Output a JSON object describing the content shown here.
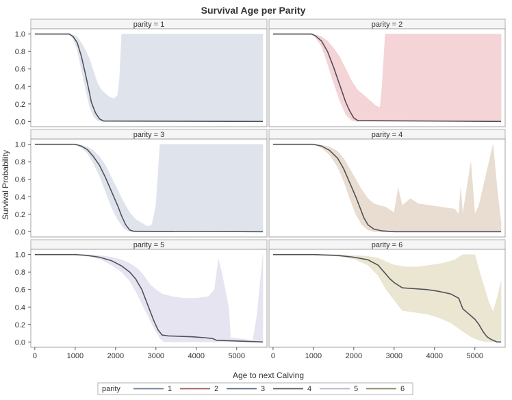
{
  "chart_data": {
    "type": "line",
    "title": "Survival Age per Parity",
    "xlabel": "Age to next Calving",
    "ylabel": "Survival Probability",
    "xlim": [
      -100,
      5750
    ],
    "ylim": [
      -0.06,
      1.06
    ],
    "xticks": [
      "0",
      "1000",
      "2000",
      "3000",
      "4000",
      "5000"
    ],
    "yticks": [
      "0.0",
      "0.2",
      "0.4",
      "0.6",
      "0.8",
      "1.0"
    ],
    "grid": false,
    "legend": {
      "title": "parity",
      "position": "bottom",
      "entries": [
        "1",
        "2",
        "3",
        "4",
        "5",
        "6"
      ],
      "colors": [
        "#6a7a9a",
        "#a05a5a",
        "#5a6a80",
        "#5a5a5a",
        "#b8b0cc",
        "#8a8460"
      ]
    },
    "panels": [
      {
        "label": "parity = 1",
        "band_color": "#dfe4ec",
        "line_color": "#505058",
        "curve": [
          [
            0,
            1
          ],
          [
            850,
            1
          ],
          [
            950,
            0.97
          ],
          [
            1050,
            0.9
          ],
          [
            1150,
            0.75
          ],
          [
            1250,
            0.55
          ],
          [
            1330,
            0.38
          ],
          [
            1400,
            0.22
          ],
          [
            1500,
            0.1
          ],
          [
            1600,
            0.03
          ],
          [
            1700,
            0.005
          ],
          [
            5650,
            0
          ]
        ],
        "upper": [
          [
            0,
            1
          ],
          [
            850,
            1
          ],
          [
            950,
            0.99
          ],
          [
            1050,
            0.97
          ],
          [
            1150,
            0.9
          ],
          [
            1250,
            0.82
          ],
          [
            1350,
            0.72
          ],
          [
            1450,
            0.58
          ],
          [
            1550,
            0.44
          ],
          [
            1650,
            0.36
          ],
          [
            1750,
            0.32
          ],
          [
            1850,
            0.28
          ],
          [
            1950,
            0.26
          ],
          [
            2050,
            0.3
          ],
          [
            2100,
            0.5
          ],
          [
            2150,
            1
          ],
          [
            5650,
            1
          ]
        ],
        "lower": [
          [
            0,
            1
          ],
          [
            850,
            1
          ],
          [
            950,
            0.95
          ],
          [
            1050,
            0.82
          ],
          [
            1150,
            0.6
          ],
          [
            1250,
            0.38
          ],
          [
            1350,
            0.18
          ],
          [
            1450,
            0.06
          ],
          [
            1550,
            0.01
          ],
          [
            1650,
            0
          ],
          [
            5650,
            0
          ]
        ]
      },
      {
        "label": "parity = 2",
        "band_color": "#f4d4d6",
        "line_color": "#505058",
        "curve": [
          [
            0,
            1
          ],
          [
            950,
            1
          ],
          [
            1050,
            0.98
          ],
          [
            1200,
            0.92
          ],
          [
            1350,
            0.8
          ],
          [
            1500,
            0.62
          ],
          [
            1650,
            0.42
          ],
          [
            1800,
            0.22
          ],
          [
            1900,
            0.12
          ],
          [
            2000,
            0.04
          ],
          [
            2100,
            0.01
          ],
          [
            5650,
            0
          ]
        ],
        "upper": [
          [
            0,
            1
          ],
          [
            950,
            1
          ],
          [
            1050,
            0.99
          ],
          [
            1200,
            0.97
          ],
          [
            1350,
            0.92
          ],
          [
            1500,
            0.84
          ],
          [
            1650,
            0.74
          ],
          [
            1800,
            0.6
          ],
          [
            1950,
            0.46
          ],
          [
            2100,
            0.36
          ],
          [
            2250,
            0.3
          ],
          [
            2400,
            0.24
          ],
          [
            2550,
            0.18
          ],
          [
            2650,
            0.16
          ],
          [
            2700,
            0.4
          ],
          [
            2780,
            1
          ],
          [
            5650,
            1
          ]
        ],
        "lower": [
          [
            0,
            1
          ],
          [
            950,
            1
          ],
          [
            1050,
            0.96
          ],
          [
            1200,
            0.86
          ],
          [
            1350,
            0.66
          ],
          [
            1500,
            0.44
          ],
          [
            1650,
            0.24
          ],
          [
            1800,
            0.08
          ],
          [
            1950,
            0.01
          ],
          [
            2050,
            0
          ],
          [
            5650,
            0
          ]
        ]
      },
      {
        "label": "parity = 3",
        "band_color": "#dfe4ec",
        "line_color": "#505058",
        "curve": [
          [
            0,
            1
          ],
          [
            1000,
            1
          ],
          [
            1150,
            0.98
          ],
          [
            1300,
            0.94
          ],
          [
            1450,
            0.86
          ],
          [
            1600,
            0.76
          ],
          [
            1750,
            0.62
          ],
          [
            1900,
            0.46
          ],
          [
            2050,
            0.3
          ],
          [
            2150,
            0.18
          ],
          [
            2250,
            0.08
          ],
          [
            2350,
            0.02
          ],
          [
            2450,
            0.005
          ],
          [
            5650,
            0
          ]
        ],
        "upper": [
          [
            0,
            1
          ],
          [
            1000,
            1
          ],
          [
            1150,
            0.99
          ],
          [
            1300,
            0.97
          ],
          [
            1450,
            0.93
          ],
          [
            1600,
            0.86
          ],
          [
            1750,
            0.76
          ],
          [
            1900,
            0.62
          ],
          [
            2050,
            0.48
          ],
          [
            2200,
            0.34
          ],
          [
            2350,
            0.22
          ],
          [
            2500,
            0.14
          ],
          [
            2650,
            0.1
          ],
          [
            2800,
            0.06
          ],
          [
            2900,
            0.08
          ],
          [
            3000,
            0.3
          ],
          [
            3100,
            1
          ],
          [
            5650,
            1
          ]
        ],
        "lower": [
          [
            0,
            1
          ],
          [
            1000,
            1
          ],
          [
            1150,
            0.96
          ],
          [
            1300,
            0.9
          ],
          [
            1450,
            0.78
          ],
          [
            1600,
            0.64
          ],
          [
            1750,
            0.46
          ],
          [
            1900,
            0.28
          ],
          [
            2050,
            0.14
          ],
          [
            2200,
            0.04
          ],
          [
            2350,
            0
          ],
          [
            5650,
            0
          ]
        ]
      },
      {
        "label": "parity = 4",
        "band_color": "#e8ddd0",
        "line_color": "#505058",
        "curve": [
          [
            0,
            1
          ],
          [
            1000,
            1
          ],
          [
            1200,
            0.98
          ],
          [
            1400,
            0.93
          ],
          [
            1600,
            0.84
          ],
          [
            1750,
            0.72
          ],
          [
            1900,
            0.56
          ],
          [
            2050,
            0.4
          ],
          [
            2150,
            0.28
          ],
          [
            2250,
            0.16
          ],
          [
            2350,
            0.08
          ],
          [
            2500,
            0.03
          ],
          [
            2700,
            0.01
          ],
          [
            3000,
            0
          ],
          [
            5650,
            0
          ]
        ],
        "upper": [
          [
            0,
            1
          ],
          [
            1000,
            1
          ],
          [
            1200,
            0.99
          ],
          [
            1400,
            0.97
          ],
          [
            1600,
            0.92
          ],
          [
            1750,
            0.84
          ],
          [
            1900,
            0.72
          ],
          [
            2050,
            0.6
          ],
          [
            2200,
            0.48
          ],
          [
            2350,
            0.38
          ],
          [
            2500,
            0.32
          ],
          [
            2650,
            0.3
          ],
          [
            2800,
            0.28
          ],
          [
            3000,
            0.22
          ],
          [
            3100,
            0.5
          ],
          [
            3200,
            0.3
          ],
          [
            3400,
            0.38
          ],
          [
            3600,
            0.32
          ],
          [
            3900,
            0.3
          ],
          [
            4200,
            0.28
          ],
          [
            4500,
            0.26
          ],
          [
            4600,
            0.2
          ],
          [
            4650,
            0.5
          ],
          [
            4700,
            0.2
          ],
          [
            4900,
            0.8
          ],
          [
            5000,
            0.2
          ],
          [
            5100,
            0.3
          ],
          [
            5300,
            0.7
          ],
          [
            5450,
            1
          ],
          [
            5550,
            0.5
          ],
          [
            5650,
            0.1
          ]
        ],
        "lower": [
          [
            0,
            1
          ],
          [
            1000,
            1
          ],
          [
            1200,
            0.96
          ],
          [
            1400,
            0.88
          ],
          [
            1600,
            0.74
          ],
          [
            1750,
            0.58
          ],
          [
            1900,
            0.38
          ],
          [
            2050,
            0.2
          ],
          [
            2200,
            0.08
          ],
          [
            2350,
            0.02
          ],
          [
            2500,
            0
          ],
          [
            5650,
            0
          ]
        ]
      },
      {
        "label": "parity = 5",
        "band_color": "#e6e4f0",
        "line_color": "#505058",
        "curve": [
          [
            0,
            1
          ],
          [
            1000,
            1
          ],
          [
            1300,
            0.99
          ],
          [
            1600,
            0.97
          ],
          [
            1900,
            0.93
          ],
          [
            2150,
            0.87
          ],
          [
            2350,
            0.8
          ],
          [
            2500,
            0.72
          ],
          [
            2650,
            0.6
          ],
          [
            2750,
            0.48
          ],
          [
            2850,
            0.36
          ],
          [
            2950,
            0.24
          ],
          [
            3050,
            0.14
          ],
          [
            3150,
            0.08
          ],
          [
            3300,
            0.07
          ],
          [
            3900,
            0.06
          ],
          [
            4200,
            0.05
          ],
          [
            4400,
            0.04
          ],
          [
            4500,
            0.02
          ],
          [
            5650,
            0
          ]
        ],
        "upper": [
          [
            0,
            1
          ],
          [
            1000,
            1
          ],
          [
            1300,
            1
          ],
          [
            1600,
            0.99
          ],
          [
            1900,
            0.97
          ],
          [
            2150,
            0.94
          ],
          [
            2350,
            0.9
          ],
          [
            2550,
            0.84
          ],
          [
            2700,
            0.76
          ],
          [
            2850,
            0.66
          ],
          [
            3000,
            0.6
          ],
          [
            3150,
            0.55
          ],
          [
            3400,
            0.52
          ],
          [
            3700,
            0.5
          ],
          [
            4000,
            0.5
          ],
          [
            4300,
            0.52
          ],
          [
            4450,
            0.6
          ],
          [
            4550,
            0.95
          ],
          [
            4650,
            0.75
          ],
          [
            4800,
            0.4
          ],
          [
            4850,
            0.05
          ],
          [
            5400,
            0.02
          ],
          [
            5500,
            0.3
          ],
          [
            5650,
            1
          ]
        ],
        "lower": [
          [
            0,
            1
          ],
          [
            1000,
            1
          ],
          [
            1300,
            0.98
          ],
          [
            1600,
            0.95
          ],
          [
            1900,
            0.88
          ],
          [
            2150,
            0.8
          ],
          [
            2350,
            0.7
          ],
          [
            2500,
            0.58
          ],
          [
            2650,
            0.44
          ],
          [
            2800,
            0.3
          ],
          [
            2950,
            0.16
          ],
          [
            3100,
            0.04
          ],
          [
            3200,
            0
          ],
          [
            5650,
            0
          ]
        ]
      },
      {
        "label": "parity = 6",
        "band_color": "#eae6d2",
        "line_color": "#505058",
        "curve": [
          [
            0,
            1
          ],
          [
            1000,
            1
          ],
          [
            1600,
            0.99
          ],
          [
            2000,
            0.97
          ],
          [
            2350,
            0.94
          ],
          [
            2600,
            0.88
          ],
          [
            2750,
            0.8
          ],
          [
            2900,
            0.72
          ],
          [
            3000,
            0.68
          ],
          [
            3200,
            0.62
          ],
          [
            3500,
            0.61
          ],
          [
            3800,
            0.6
          ],
          [
            4100,
            0.58
          ],
          [
            4400,
            0.55
          ],
          [
            4600,
            0.5
          ],
          [
            4700,
            0.38
          ],
          [
            4900,
            0.3
          ],
          [
            5000,
            0.26
          ],
          [
            5100,
            0.2
          ],
          [
            5200,
            0.12
          ],
          [
            5300,
            0.06
          ],
          [
            5400,
            0.03
          ],
          [
            5550,
            0
          ],
          [
            5650,
            0
          ]
        ],
        "upper": [
          [
            0,
            1
          ],
          [
            1000,
            1
          ],
          [
            1600,
            1
          ],
          [
            2000,
            0.99
          ],
          [
            2350,
            0.98
          ],
          [
            2600,
            0.96
          ],
          [
            2800,
            0.92
          ],
          [
            3000,
            0.88
          ],
          [
            3300,
            0.86
          ],
          [
            3600,
            0.86
          ],
          [
            3900,
            0.88
          ],
          [
            4200,
            0.9
          ],
          [
            4500,
            0.94
          ],
          [
            4700,
            1
          ],
          [
            5000,
            1
          ],
          [
            5150,
            0.75
          ],
          [
            5350,
            0.45
          ],
          [
            5450,
            0.35
          ],
          [
            5550,
            0.5
          ],
          [
            5650,
            0.7
          ]
        ],
        "lower": [
          [
            0,
            1
          ],
          [
            1000,
            1
          ],
          [
            1600,
            0.98
          ],
          [
            2000,
            0.95
          ],
          [
            2350,
            0.88
          ],
          [
            2600,
            0.76
          ],
          [
            2800,
            0.6
          ],
          [
            3000,
            0.48
          ],
          [
            3200,
            0.36
          ],
          [
            3500,
            0.34
          ],
          [
            3800,
            0.32
          ],
          [
            4100,
            0.28
          ],
          [
            4400,
            0.22
          ],
          [
            4700,
            0.12
          ],
          [
            4900,
            0.06
          ],
          [
            5100,
            0.02
          ],
          [
            5300,
            0
          ],
          [
            5650,
            0
          ]
        ]
      }
    ]
  }
}
